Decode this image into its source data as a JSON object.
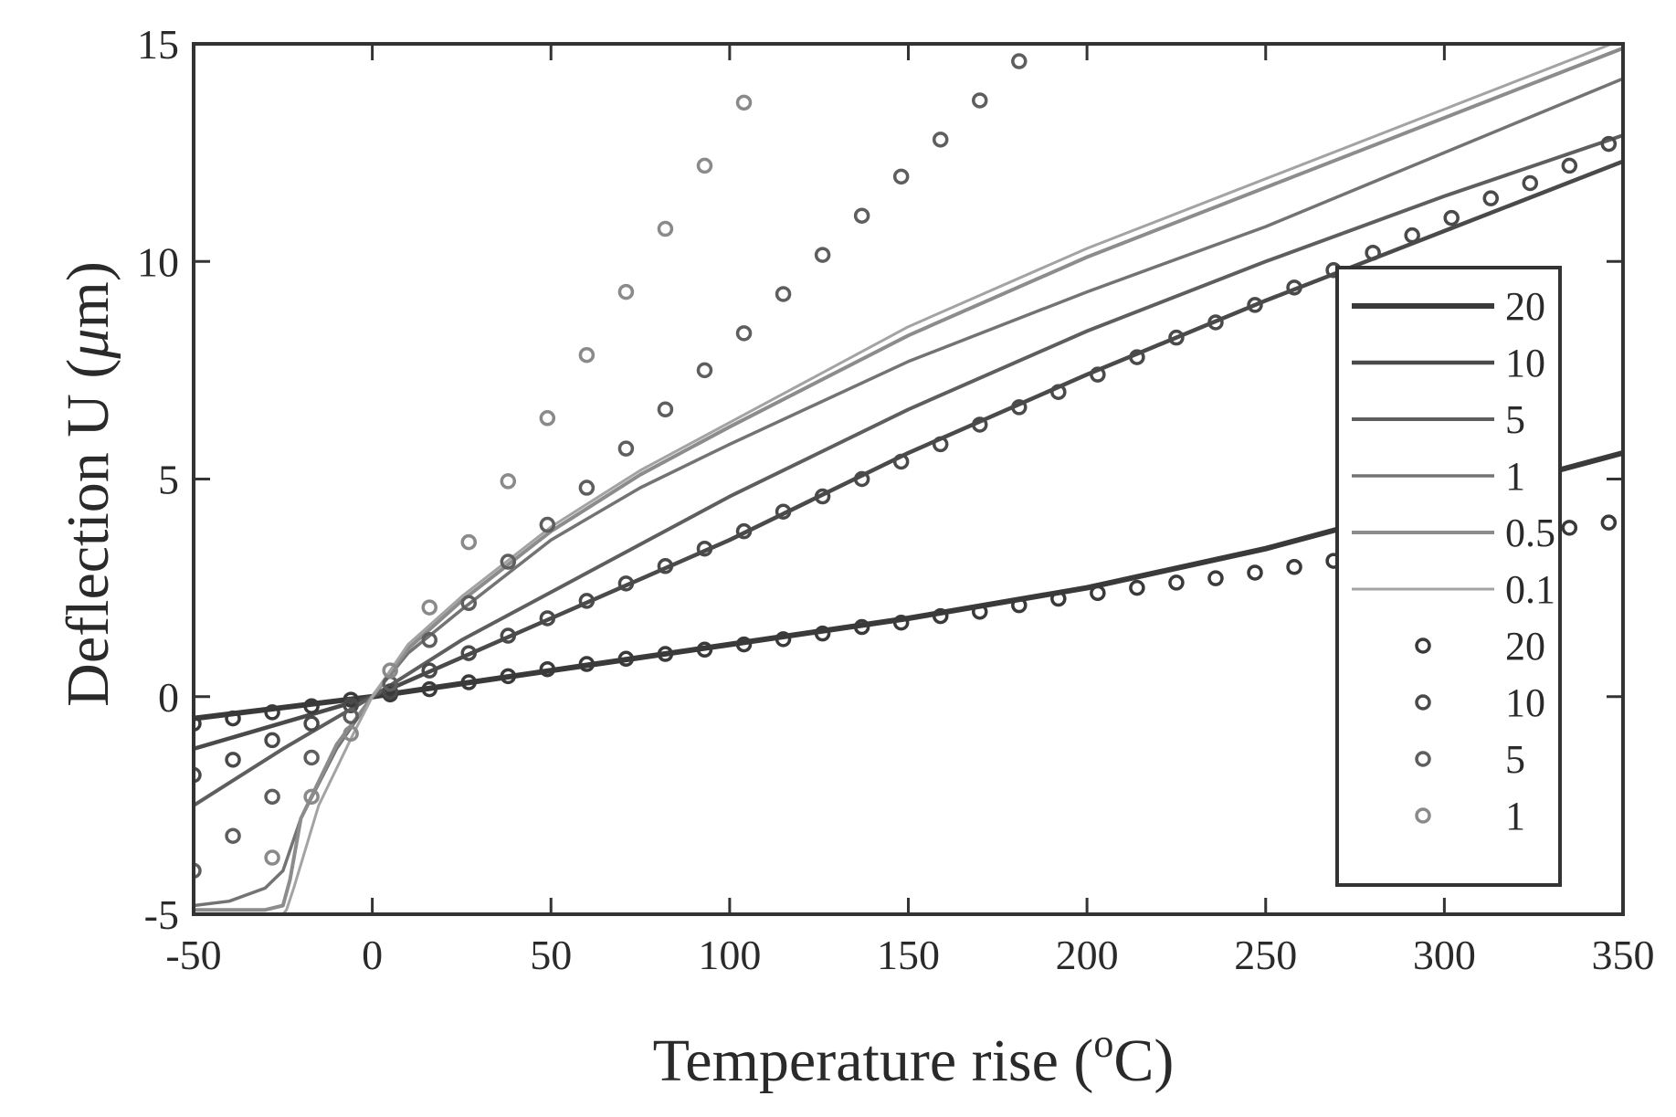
{
  "chart_data": {
    "type": "line",
    "title": "",
    "xlabel_main": "Temperature rise (",
    "xlabel_sup": "o",
    "xlabel_tail": "C)",
    "ylabel_main": "Deflection U (",
    "ylabel_mu": "μ",
    "ylabel_tail": "m)",
    "xlim": [
      -50,
      350
    ],
    "ylim": [
      -5,
      15
    ],
    "xticks": [
      -50,
      0,
      50,
      100,
      150,
      200,
      250,
      300,
      350
    ],
    "yticks": [
      -5,
      0,
      5,
      10,
      15
    ],
    "xtick_labels": [
      "-50",
      "0",
      "50",
      "100",
      "150",
      "200",
      "250",
      "300",
      "350"
    ],
    "ytick_labels": [
      "-5",
      "0",
      "5",
      "10",
      "15"
    ],
    "grid": false,
    "legend_position": "right",
    "line_series": [
      {
        "name": "20",
        "color": "#3a3a3a",
        "x": [
          -50,
          -25,
          0,
          25,
          50,
          100,
          150,
          200,
          250,
          300,
          350
        ],
        "y": [
          -0.5,
          -0.25,
          0,
          0.3,
          0.6,
          1.2,
          1.8,
          2.5,
          3.4,
          4.5,
          5.6
        ]
      },
      {
        "name": "10",
        "color": "#4a4a4a",
        "x": [
          -50,
          -25,
          0,
          25,
          50,
          100,
          150,
          200,
          250,
          300,
          350
        ],
        "y": [
          -1.2,
          -0.6,
          0,
          0.9,
          1.8,
          3.6,
          5.6,
          7.4,
          9.1,
          10.7,
          12.3
        ]
      },
      {
        "name": "5",
        "color": "#5e5e5e",
        "x": [
          -50,
          -25,
          0,
          25,
          50,
          100,
          150,
          200,
          250,
          300,
          350
        ],
        "y": [
          -2.5,
          -1.2,
          0,
          1.3,
          2.4,
          4.6,
          6.6,
          8.4,
          10.0,
          11.5,
          12.9
        ]
      },
      {
        "name": "1",
        "color": "#737373",
        "x": [
          -50,
          -40,
          -30,
          -25,
          -20,
          -10,
          0,
          10,
          25,
          50,
          75,
          100,
          150,
          200,
          250,
          300,
          350
        ],
        "y": [
          -4.8,
          -4.7,
          -4.4,
          -4.0,
          -2.8,
          -1.2,
          0,
          1.0,
          2.0,
          3.6,
          4.8,
          5.8,
          7.7,
          9.3,
          10.8,
          12.5,
          14.2
        ]
      },
      {
        "name": "0.5",
        "color": "#8c8c8c",
        "x": [
          -50,
          -30,
          -25,
          -23,
          -20,
          -10,
          0,
          10,
          25,
          50,
          75,
          100,
          150,
          200,
          250,
          300,
          350
        ],
        "y": [
          -4.9,
          -4.9,
          -4.8,
          -4.2,
          -2.8,
          -1.1,
          0,
          1.1,
          2.2,
          3.8,
          5.1,
          6.2,
          8.3,
          10.1,
          11.7,
          13.3,
          14.9
        ]
      },
      {
        "name": "0.1",
        "color": "#a3a3a3",
        "x": [
          -50,
          -25,
          -24,
          -22,
          -15,
          -5,
          0,
          10,
          25,
          50,
          75,
          100,
          150,
          200,
          250,
          300,
          350
        ],
        "y": [
          -5.0,
          -5.0,
          -4.9,
          -4.4,
          -2.5,
          -0.8,
          0,
          1.2,
          2.3,
          3.9,
          5.2,
          6.3,
          8.5,
          10.3,
          11.9,
          13.5,
          15.1
        ]
      }
    ],
    "marker_series": [
      {
        "name": "20",
        "color": "#3a3a3a",
        "x": [
          -50,
          -39,
          -28,
          -17,
          -6,
          5,
          16,
          27,
          38,
          49,
          60,
          71,
          82,
          93,
          104,
          115,
          126,
          137,
          148,
          159,
          170,
          181,
          192,
          203,
          214,
          225,
          236,
          247,
          258,
          269,
          280,
          291,
          302,
          313,
          324,
          335,
          346
        ],
        "y": [
          -0.62,
          -0.5,
          -0.36,
          -0.22,
          -0.07,
          0.05,
          0.17,
          0.33,
          0.47,
          0.63,
          0.75,
          0.87,
          0.98,
          1.08,
          1.2,
          1.32,
          1.45,
          1.6,
          1.7,
          1.85,
          1.95,
          2.1,
          2.25,
          2.38,
          2.5,
          2.62,
          2.72,
          2.85,
          2.98,
          3.12,
          3.25,
          3.38,
          3.5,
          3.62,
          3.75,
          3.88,
          4.0
        ]
      },
      {
        "name": "10",
        "color": "#4a4a4a",
        "x": [
          -50,
          -39,
          -28,
          -17,
          -6,
          5,
          16,
          27,
          38,
          49,
          60,
          71,
          82,
          93,
          104,
          115,
          126,
          137,
          148,
          159,
          170,
          181,
          192,
          203,
          214,
          225,
          236,
          247,
          258,
          269,
          280,
          291,
          302,
          313,
          324,
          335,
          346
        ],
        "y": [
          -1.8,
          -1.45,
          -1.0,
          -0.62,
          -0.2,
          0.12,
          0.6,
          1.0,
          1.4,
          1.8,
          2.2,
          2.6,
          3.0,
          3.4,
          3.8,
          4.25,
          4.6,
          5.0,
          5.4,
          5.8,
          6.25,
          6.65,
          7.0,
          7.4,
          7.8,
          8.25,
          8.6,
          9.0,
          9.4,
          9.8,
          10.2,
          10.6,
          11.0,
          11.45,
          11.8,
          12.2,
          12.7
        ]
      },
      {
        "name": "5",
        "color": "#5e5e5e",
        "x": [
          -50,
          -39,
          -28,
          -17,
          -6,
          5,
          16,
          27,
          38,
          49,
          60,
          71,
          82,
          93,
          104,
          115,
          126,
          137,
          148,
          159,
          170,
          181
        ],
        "y": [
          -4.0,
          -3.2,
          -2.3,
          -1.4,
          -0.45,
          0.3,
          1.3,
          2.15,
          3.1,
          3.95,
          4.8,
          5.7,
          6.6,
          7.5,
          8.35,
          9.25,
          10.15,
          11.05,
          11.95,
          12.8,
          13.7,
          14.6
        ]
      },
      {
        "name": "1",
        "color": "#8a8a8a",
        "x": [
          -28,
          -17,
          -6,
          5,
          16,
          27,
          38,
          49,
          60,
          71,
          82,
          93,
          104
        ],
        "y": [
          -3.7,
          -2.3,
          -0.85,
          0.6,
          2.05,
          3.55,
          4.95,
          6.4,
          7.85,
          9.3,
          10.75,
          12.2,
          13.65
        ]
      }
    ]
  }
}
